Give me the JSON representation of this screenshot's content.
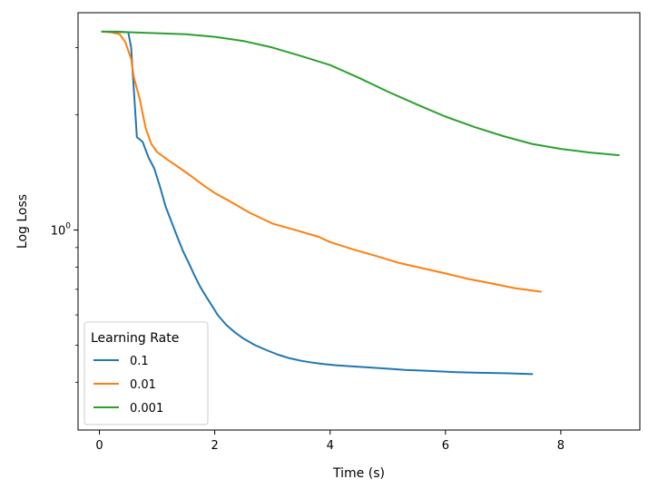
{
  "chart_data": {
    "type": "line",
    "title": "",
    "xlabel": "Time (s)",
    "ylabel": "Log Loss",
    "xlim": [
      -0.37,
      9.37
    ],
    "ylim": [
      0.3,
      3.7
    ],
    "yscale": "log",
    "x_ticks": [
      0,
      2,
      4,
      6,
      8
    ],
    "x_tick_labels": [
      "0",
      "2",
      "4",
      "6",
      "8"
    ],
    "y_major_ticks": [
      1
    ],
    "y_minor_ticks": [
      0.4,
      0.5,
      0.6,
      0.7,
      0.8,
      0.9,
      2,
      3
    ],
    "y_tick_label": {
      "base": "10",
      "exponent": "0"
    },
    "grid": false,
    "legend": {
      "title": "Learning Rate",
      "placement": "lower-left"
    },
    "series": [
      {
        "name": "0.1",
        "color": "#1f77b4",
        "points": [
          [
            0.05,
            3.3
          ],
          [
            0.3,
            3.3
          ],
          [
            0.5,
            3.29
          ],
          [
            0.55,
            3.0
          ],
          [
            0.6,
            2.3
          ],
          [
            0.65,
            1.75
          ],
          [
            0.75,
            1.7
          ],
          [
            0.85,
            1.55
          ],
          [
            0.95,
            1.45
          ],
          [
            1.05,
            1.3
          ],
          [
            1.15,
            1.15
          ],
          [
            1.25,
            1.05
          ],
          [
            1.35,
            0.96
          ],
          [
            1.45,
            0.88
          ],
          [
            1.55,
            0.82
          ],
          [
            1.65,
            0.76
          ],
          [
            1.75,
            0.71
          ],
          [
            1.85,
            0.67
          ],
          [
            1.95,
            0.635
          ],
          [
            2.05,
            0.6
          ],
          [
            2.2,
            0.565
          ],
          [
            2.35,
            0.54
          ],
          [
            2.5,
            0.52
          ],
          [
            2.7,
            0.5
          ],
          [
            2.9,
            0.485
          ],
          [
            3.1,
            0.472
          ],
          [
            3.3,
            0.462
          ],
          [
            3.5,
            0.455
          ],
          [
            3.7,
            0.45
          ],
          [
            3.9,
            0.446
          ],
          [
            4.1,
            0.443
          ],
          [
            4.4,
            0.44
          ],
          [
            4.7,
            0.437
          ],
          [
            5.0,
            0.434
          ],
          [
            5.3,
            0.431
          ],
          [
            5.6,
            0.429
          ],
          [
            5.9,
            0.427
          ],
          [
            6.2,
            0.425
          ],
          [
            6.5,
            0.424
          ],
          [
            6.8,
            0.423
          ],
          [
            7.1,
            0.422
          ],
          [
            7.5,
            0.42
          ]
        ]
      },
      {
        "name": "0.01",
        "color": "#ff7f0e",
        "points": [
          [
            0.05,
            3.3
          ],
          [
            0.2,
            3.29
          ],
          [
            0.35,
            3.25
          ],
          [
            0.45,
            3.1
          ],
          [
            0.55,
            2.8
          ],
          [
            0.6,
            2.5
          ],
          [
            0.7,
            2.2
          ],
          [
            0.8,
            1.85
          ],
          [
            0.9,
            1.68
          ],
          [
            1.0,
            1.6
          ],
          [
            1.2,
            1.52
          ],
          [
            1.4,
            1.45
          ],
          [
            1.6,
            1.38
          ],
          [
            1.8,
            1.31
          ],
          [
            2.0,
            1.25
          ],
          [
            2.3,
            1.18
          ],
          [
            2.6,
            1.11
          ],
          [
            3.0,
            1.04
          ],
          [
            3.4,
            1.0
          ],
          [
            3.8,
            0.96
          ],
          [
            4.0,
            0.93
          ],
          [
            4.4,
            0.89
          ],
          [
            4.8,
            0.855
          ],
          [
            5.2,
            0.82
          ],
          [
            5.6,
            0.795
          ],
          [
            6.0,
            0.77
          ],
          [
            6.4,
            0.745
          ],
          [
            6.8,
            0.725
          ],
          [
            7.2,
            0.705
          ],
          [
            7.65,
            0.69
          ]
        ]
      },
      {
        "name": "0.001",
        "color": "#2ca02c",
        "points": [
          [
            0.05,
            3.3
          ],
          [
            0.5,
            3.29
          ],
          [
            1.0,
            3.27
          ],
          [
            1.5,
            3.25
          ],
          [
            2.0,
            3.2
          ],
          [
            2.5,
            3.12
          ],
          [
            3.0,
            3.0
          ],
          [
            3.5,
            2.85
          ],
          [
            4.0,
            2.7
          ],
          [
            4.5,
            2.5
          ],
          [
            5.0,
            2.3
          ],
          [
            5.5,
            2.13
          ],
          [
            6.0,
            1.98
          ],
          [
            6.5,
            1.86
          ],
          [
            7.0,
            1.76
          ],
          [
            7.5,
            1.68
          ],
          [
            8.0,
            1.63
          ],
          [
            8.5,
            1.595
          ],
          [
            9.0,
            1.57
          ]
        ]
      }
    ]
  }
}
